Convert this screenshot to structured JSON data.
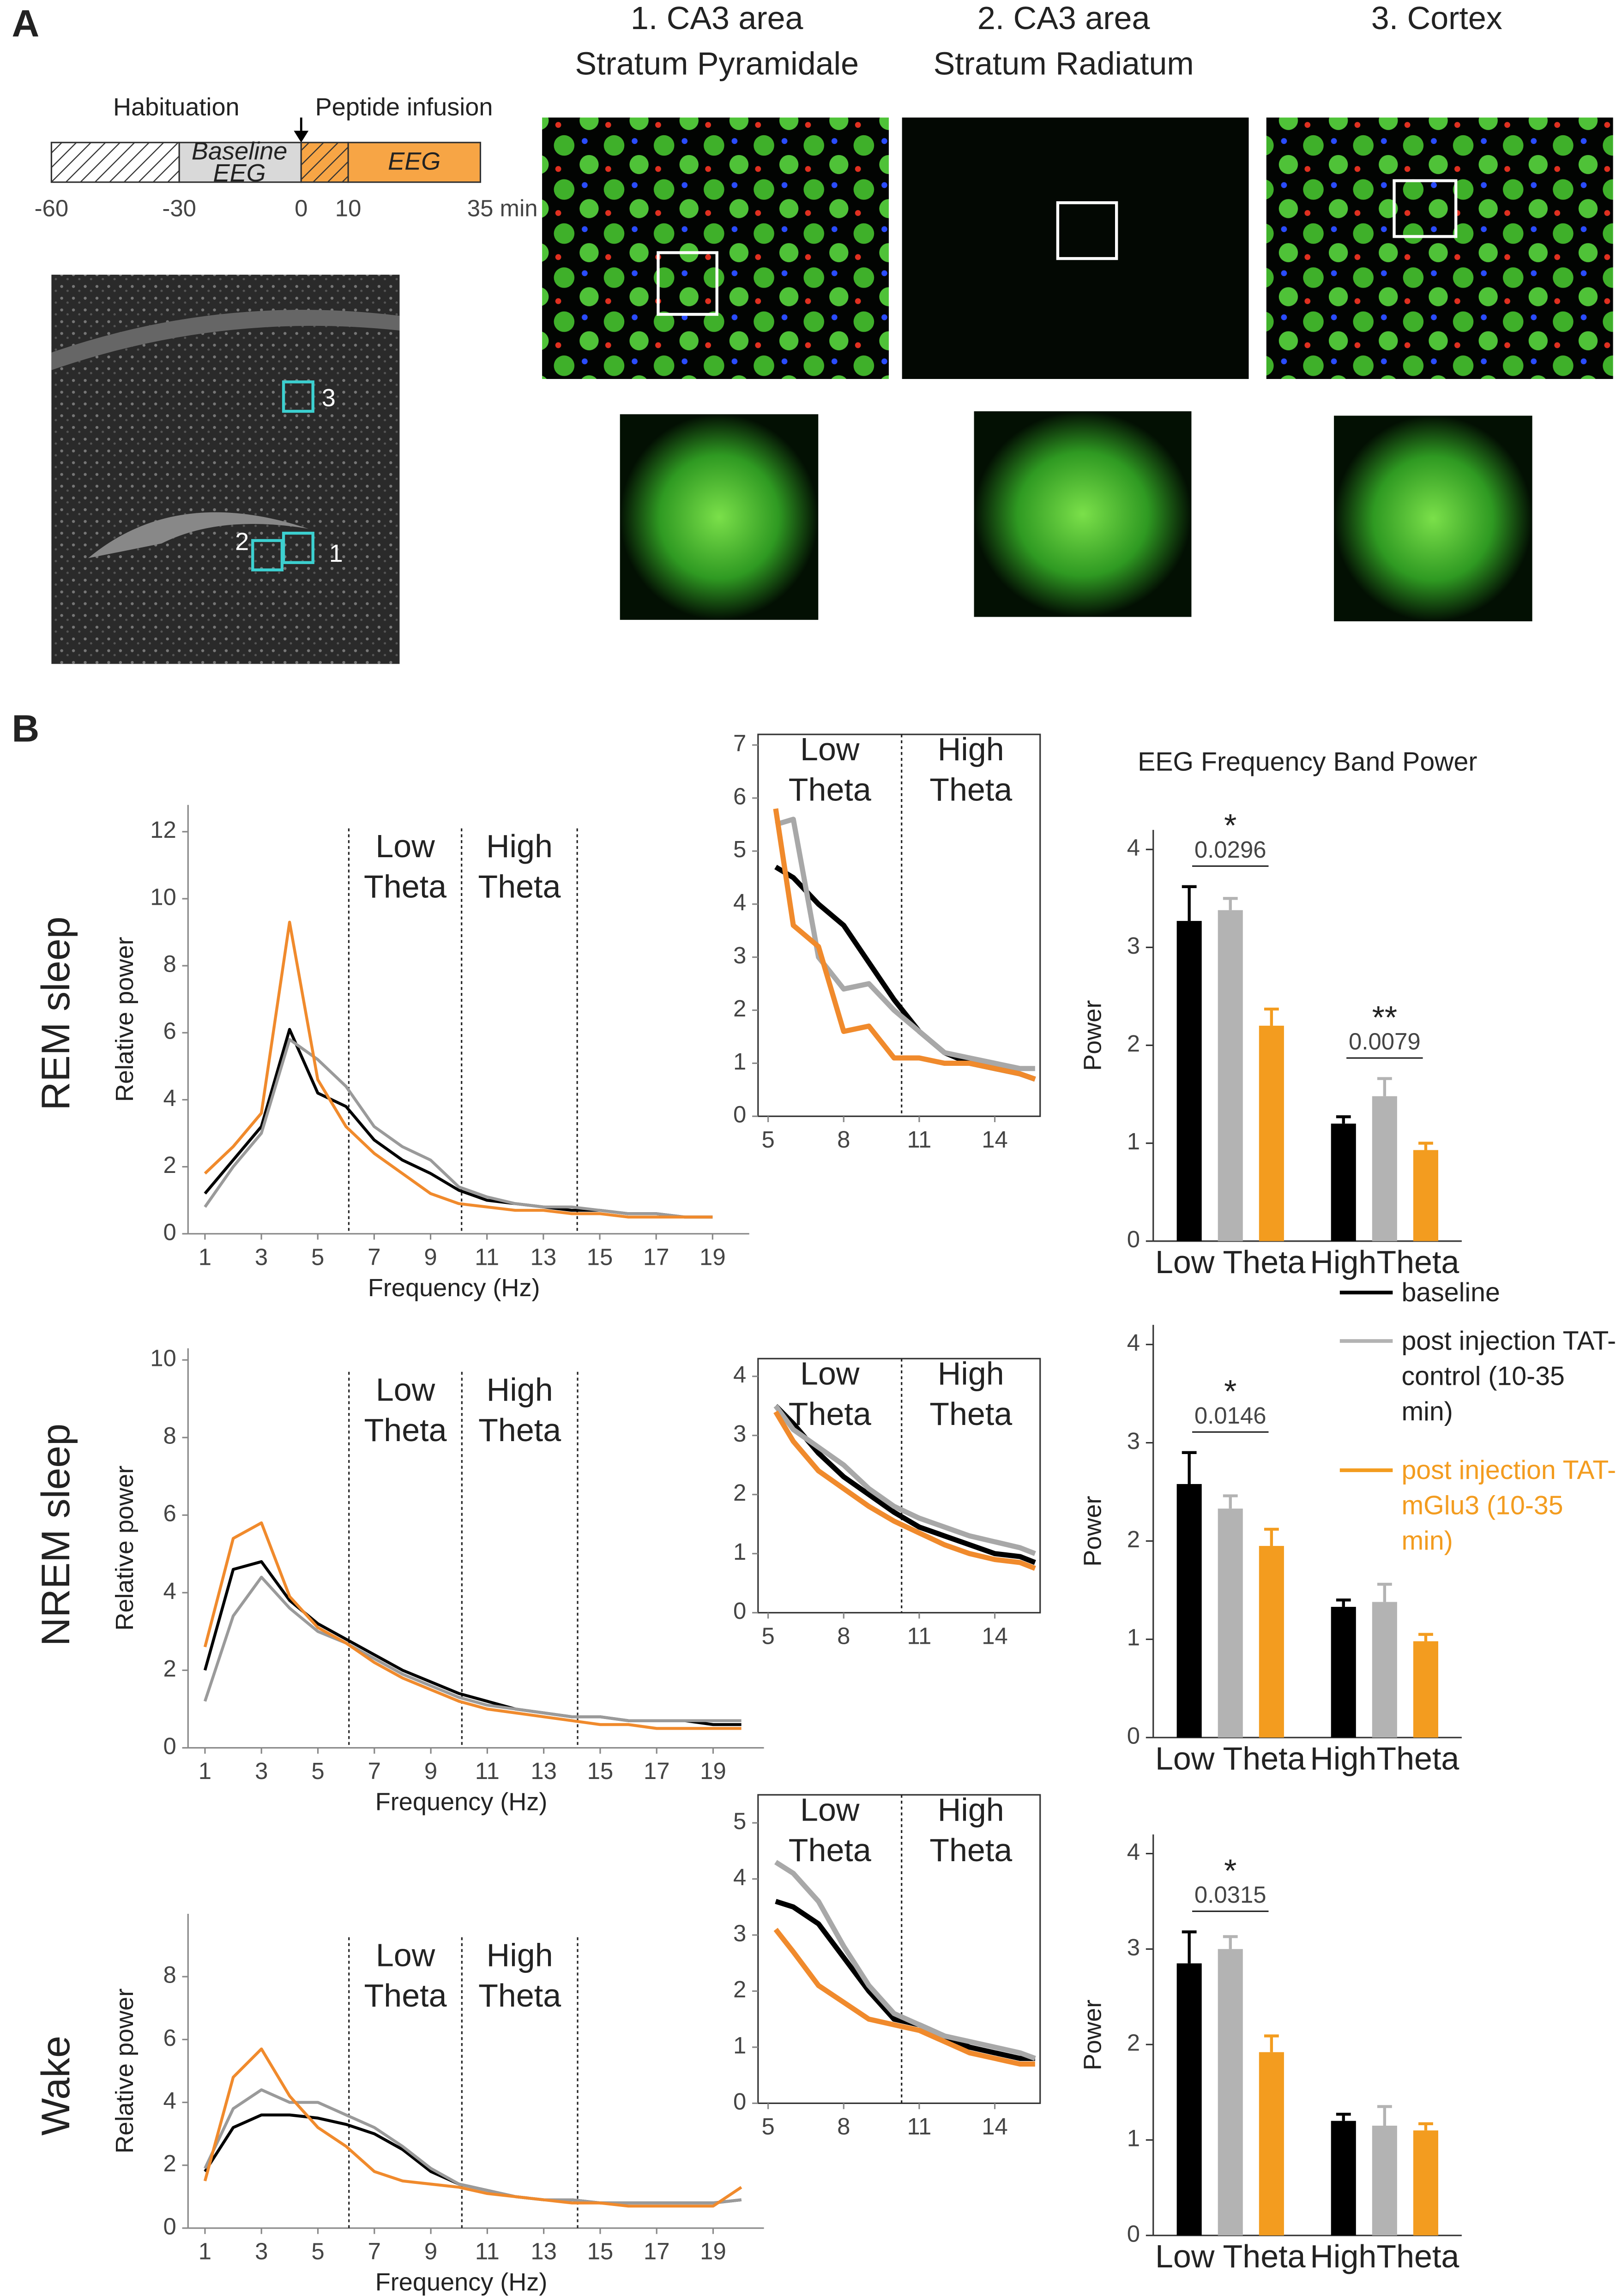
{
  "panel_a": {
    "label": "A",
    "timeline": {
      "habituation": "Habituation",
      "infusion": "Peptide infusion",
      "baseline": [
        "Baseline",
        "EEG"
      ],
      "eeg": "EEG",
      "ticks": [
        "-60",
        "-30",
        "0",
        "10",
        "35 min"
      ]
    },
    "images": [
      {
        "title": [
          "1. CA3 area",
          "Stratum Pyramidale"
        ]
      },
      {
        "title": [
          "2. CA3 area",
          "Stratum Radiatum"
        ]
      },
      {
        "title": [
          "3. Cortex"
        ]
      }
    ],
    "regions": [
      "1",
      "2",
      "3"
    ]
  },
  "panel_b": {
    "label": "B",
    "rows": [
      "REM sleep",
      "NREM sleep",
      "Wake"
    ]
  },
  "chart_data": [
    {
      "type": "line",
      "x_label": "Frequency (Hz)",
      "y_label": "Relative power",
      "x": [
        1,
        2,
        3,
        4,
        5,
        6,
        7,
        8,
        9,
        10,
        11,
        12,
        13,
        14,
        15,
        16,
        17,
        18,
        19
      ],
      "series": [
        {
          "name": "baseline",
          "color": "#000000",
          "values": [
            1.2,
            2.2,
            3.2,
            6.1,
            4.2,
            3.8,
            2.8,
            2.2,
            1.8,
            1.3,
            1.0,
            0.9,
            0.8,
            0.7,
            0.7,
            0.6,
            0.6,
            0.5,
            0.5
          ]
        },
        {
          "name": "post injection TAT-control (10-35 min)",
          "color": "#9a9a9a",
          "values": [
            0.8,
            2.0,
            3.0,
            5.8,
            5.2,
            4.4,
            3.2,
            2.6,
            2.2,
            1.4,
            1.1,
            0.9,
            0.8,
            0.8,
            0.7,
            0.6,
            0.6,
            0.5,
            0.5
          ]
        },
        {
          "name": "post injection TAT-mGlu3 (10-35 min)",
          "color": "#f08a2c",
          "values": [
            1.8,
            2.6,
            3.6,
            9.3,
            4.6,
            3.2,
            2.4,
            1.8,
            1.2,
            0.9,
            0.8,
            0.7,
            0.7,
            0.6,
            0.6,
            0.5,
            0.5,
            0.5,
            0.5
          ]
        }
      ],
      "xlim": [
        0.4,
        20.3
      ],
      "ylim": [
        0,
        12.8
      ],
      "xticks": [
        1,
        3,
        5,
        7,
        9,
        11,
        13,
        15,
        17,
        19
      ],
      "yticks": [
        0,
        2,
        4,
        6,
        8,
        10,
        12
      ],
      "vlines": [
        6.1,
        10.1,
        14.2
      ],
      "annotations": [
        "Low Theta",
        "High Theta"
      ]
    },
    {
      "type": "line",
      "x": [
        5.3,
        6,
        7,
        8,
        9,
        10,
        11,
        12,
        13,
        14,
        15,
        15.6
      ],
      "series": [
        {
          "name": "baseline",
          "color": "#000000",
          "values": [
            4.7,
            4.5,
            4.0,
            3.6,
            2.9,
            2.2,
            1.6,
            1.2,
            1.0,
            0.9,
            0.8,
            0.7
          ]
        },
        {
          "name": "post injection TAT-control (10-35 min)",
          "color": "#a8a8a8",
          "values": [
            5.5,
            5.6,
            3.0,
            2.4,
            2.5,
            2.0,
            1.6,
            1.2,
            1.1,
            1.0,
            0.9,
            0.9
          ]
        },
        {
          "name": "post injection TAT-mGlu3 (10-35 min)",
          "color": "#f08a2c",
          "values": [
            5.8,
            3.6,
            3.2,
            1.6,
            1.7,
            1.1,
            1.1,
            1.0,
            1.0,
            0.9,
            0.8,
            0.7
          ]
        }
      ],
      "xlim": [
        4.6,
        15.8
      ],
      "ylim": [
        0,
        7.2
      ],
      "xticks": [
        5,
        8,
        11,
        14
      ],
      "yticks": [
        0,
        1,
        2,
        3,
        4,
        5,
        6,
        7
      ],
      "vlines": [
        10.3
      ],
      "annotations": [
        "Low Theta",
        "High Theta"
      ]
    },
    {
      "type": "bar",
      "title": "EEG Frequency Band Power",
      "y_label": "Power",
      "categories": [
        "Low Theta",
        "HighTheta"
      ],
      "series": [
        {
          "name": "baseline",
          "color": "#000000",
          "values": [
            3.27,
            1.2
          ],
          "errors": [
            0.35,
            0.07
          ]
        },
        {
          "name": "post injection TAT-control (10-35 min)",
          "color": "#b3b3b3",
          "values": [
            3.38,
            1.48
          ],
          "errors": [
            0.12,
            0.18
          ]
        },
        {
          "name": "post injection TAT-mGlu3 (10-35 min)",
          "color": "#f39c1f",
          "values": [
            2.2,
            0.93
          ],
          "errors": [
            0.17,
            0.07
          ]
        }
      ],
      "ylim": [
        0,
        4.2
      ],
      "yticks": [
        0,
        1,
        2,
        3,
        4
      ],
      "stars": [
        "*",
        "**"
      ],
      "p_values": [
        "0.0296",
        "0.0079"
      ]
    },
    {
      "type": "line",
      "x_label": "Frequency (Hz)",
      "y_label": "Relative power",
      "x": [
        1,
        2,
        3,
        4,
        5,
        6,
        7,
        8,
        9,
        10,
        11,
        12,
        13,
        14,
        15,
        16,
        17,
        18,
        19,
        20
      ],
      "series": [
        {
          "name": "baseline",
          "color": "#000000",
          "values": [
            2.0,
            4.6,
            4.8,
            3.8,
            3.2,
            2.8,
            2.4,
            2.0,
            1.7,
            1.4,
            1.2,
            1.0,
            0.9,
            0.8,
            0.8,
            0.7,
            0.7,
            0.7,
            0.6,
            0.6
          ]
        },
        {
          "name": "post injection TAT-control (10-35 min)",
          "color": "#9a9a9a",
          "values": [
            1.2,
            3.4,
            4.4,
            3.6,
            3.0,
            2.7,
            2.3,
            1.9,
            1.6,
            1.3,
            1.1,
            1.0,
            0.9,
            0.8,
            0.8,
            0.7,
            0.7,
            0.7,
            0.7,
            0.7
          ]
        },
        {
          "name": "post injection TAT-mGlu3 (10-35 min)",
          "color": "#f08a2c",
          "values": [
            2.6,
            5.4,
            5.8,
            3.9,
            3.1,
            2.7,
            2.2,
            1.8,
            1.5,
            1.2,
            1.0,
            0.9,
            0.8,
            0.7,
            0.6,
            0.6,
            0.5,
            0.5,
            0.5,
            0.5
          ]
        }
      ],
      "xlim": [
        0.4,
        20.8
      ],
      "ylim": [
        0,
        10.3
      ],
      "xticks": [
        1,
        3,
        5,
        7,
        9,
        11,
        13,
        15,
        17,
        19
      ],
      "yticks": [
        0,
        2,
        4,
        6,
        8,
        10
      ],
      "vlines": [
        6.1,
        10.1,
        14.2
      ],
      "annotations": [
        "Low Theta",
        "High Theta"
      ]
    },
    {
      "type": "line",
      "x": [
        5.3,
        6,
        7,
        8,
        9,
        10,
        11,
        12,
        13,
        14,
        15,
        15.6
      ],
      "series": [
        {
          "name": "baseline",
          "color": "#000000",
          "values": [
            3.5,
            3.2,
            2.7,
            2.3,
            2.0,
            1.7,
            1.45,
            1.3,
            1.15,
            1.0,
            0.95,
            0.85
          ]
        },
        {
          "name": "post injection TAT-control (10-35 min)",
          "color": "#a8a8a8",
          "values": [
            3.5,
            3.1,
            2.8,
            2.5,
            2.1,
            1.8,
            1.6,
            1.45,
            1.3,
            1.2,
            1.1,
            1.0
          ]
        },
        {
          "name": "post injection TAT-mGlu3 (10-35 min)",
          "color": "#f08a2c",
          "values": [
            3.4,
            2.9,
            2.4,
            2.1,
            1.8,
            1.55,
            1.35,
            1.15,
            1.0,
            0.9,
            0.85,
            0.75
          ]
        }
      ],
      "xlim": [
        4.6,
        15.8
      ],
      "ylim": [
        0,
        4.3
      ],
      "xticks": [
        5,
        8,
        11,
        14
      ],
      "yticks": [
        0,
        1,
        2,
        3,
        4
      ],
      "vlines": [
        10.3
      ],
      "annotations": [
        "Low Theta",
        "High Theta"
      ]
    },
    {
      "type": "bar",
      "y_label": "Power",
      "categories": [
        "Low Theta",
        "HighTheta"
      ],
      "series": [
        {
          "name": "baseline",
          "color": "#000000",
          "values": [
            2.58,
            1.33
          ],
          "errors": [
            0.32,
            0.07
          ]
        },
        {
          "name": "post injection TAT-control (10-35 min)",
          "color": "#b3b3b3",
          "values": [
            2.33,
            1.38
          ],
          "errors": [
            0.13,
            0.18
          ]
        },
        {
          "name": "post injection TAT-mGlu3 (10-35 min)",
          "color": "#f39c1f",
          "values": [
            1.95,
            0.98
          ],
          "errors": [
            0.17,
            0.07
          ]
        }
      ],
      "ylim": [
        0,
        4.2
      ],
      "yticks": [
        0,
        1,
        2,
        3,
        4
      ],
      "stars": [
        "*"
      ],
      "p_values": [
        "0.0146"
      ],
      "legend": "right"
    },
    {
      "type": "line",
      "x_label": "Frequency (Hz)",
      "y_label": "Relative power",
      "x": [
        1,
        2,
        3,
        4,
        5,
        6,
        7,
        8,
        9,
        10,
        11,
        12,
        13,
        14,
        15,
        16,
        17,
        18,
        19,
        20
      ],
      "series": [
        {
          "name": "baseline",
          "color": "#000000",
          "values": [
            1.8,
            3.2,
            3.6,
            3.6,
            3.5,
            3.3,
            3.0,
            2.5,
            1.8,
            1.4,
            1.2,
            1.0,
            0.9,
            0.9,
            0.8,
            0.8,
            0.8,
            0.8,
            0.8,
            0.9
          ]
        },
        {
          "name": "post injection TAT-control (10-35 min)",
          "color": "#9a9a9a",
          "values": [
            1.9,
            3.8,
            4.4,
            4.0,
            4.0,
            3.6,
            3.2,
            2.6,
            1.9,
            1.4,
            1.2,
            1.0,
            0.9,
            0.9,
            0.8,
            0.8,
            0.8,
            0.8,
            0.8,
            0.9
          ]
        },
        {
          "name": "post injection TAT-mGlu3 (10-35 min)",
          "color": "#f08a2c",
          "values": [
            1.5,
            4.8,
            5.7,
            4.2,
            3.2,
            2.6,
            1.8,
            1.5,
            1.4,
            1.3,
            1.1,
            1.0,
            0.9,
            0.8,
            0.8,
            0.7,
            0.7,
            0.7,
            0.7,
            1.3
          ]
        }
      ],
      "xlim": [
        0.4,
        20.8
      ],
      "ylim": [
        0,
        10
      ],
      "xticks": [
        1,
        3,
        5,
        7,
        9,
        11,
        13,
        15,
        17,
        19
      ],
      "yticks": [
        0,
        2,
        4,
        6,
        8
      ],
      "vlines": [
        6.1,
        10.1,
        14.2
      ],
      "annotations": [
        "Low Theta",
        "High Theta"
      ]
    },
    {
      "type": "line",
      "x": [
        5.3,
        6,
        7,
        8,
        9,
        10,
        11,
        12,
        13,
        14,
        15,
        15.6
      ],
      "series": [
        {
          "name": "baseline",
          "color": "#000000",
          "values": [
            3.6,
            3.5,
            3.2,
            2.6,
            2.0,
            1.5,
            1.4,
            1.2,
            1.0,
            0.9,
            0.8,
            0.8
          ]
        },
        {
          "name": "post injection TAT-control (10-35 min)",
          "color": "#a8a8a8",
          "values": [
            4.3,
            4.1,
            3.6,
            2.8,
            2.1,
            1.6,
            1.4,
            1.2,
            1.1,
            1.0,
            0.9,
            0.8
          ]
        },
        {
          "name": "post injection TAT-mGlu3 (10-35 min)",
          "color": "#f08a2c",
          "values": [
            3.1,
            2.7,
            2.1,
            1.8,
            1.5,
            1.4,
            1.3,
            1.1,
            0.9,
            0.8,
            0.7,
            0.7
          ]
        }
      ],
      "xlim": [
        4.6,
        15.8
      ],
      "ylim": [
        0,
        5.5
      ],
      "xticks": [
        5,
        8,
        11,
        14
      ],
      "yticks": [
        0,
        1,
        2,
        3,
        4,
        5
      ],
      "vlines": [
        10.3
      ],
      "annotations": [
        "Low Theta",
        "High Theta"
      ]
    },
    {
      "type": "bar",
      "y_label": "Power",
      "categories": [
        "Low Theta",
        "HighTheta"
      ],
      "series": [
        {
          "name": "baseline",
          "color": "#000000",
          "values": [
            2.85,
            1.2
          ],
          "errors": [
            0.33,
            0.07
          ]
        },
        {
          "name": "post injection TAT-control (10-35 min)",
          "color": "#b3b3b3",
          "values": [
            3.0,
            1.15
          ],
          "errors": [
            0.13,
            0.2
          ]
        },
        {
          "name": "post injection TAT-mGlu3 (10-35 min)",
          "color": "#f39c1f",
          "values": [
            1.92,
            1.1
          ],
          "errors": [
            0.17,
            0.07
          ]
        }
      ],
      "ylim": [
        0,
        4.2
      ],
      "yticks": [
        0,
        1,
        2,
        3,
        4
      ],
      "stars": [
        "*"
      ],
      "p_values": [
        "0.0315"
      ]
    }
  ]
}
